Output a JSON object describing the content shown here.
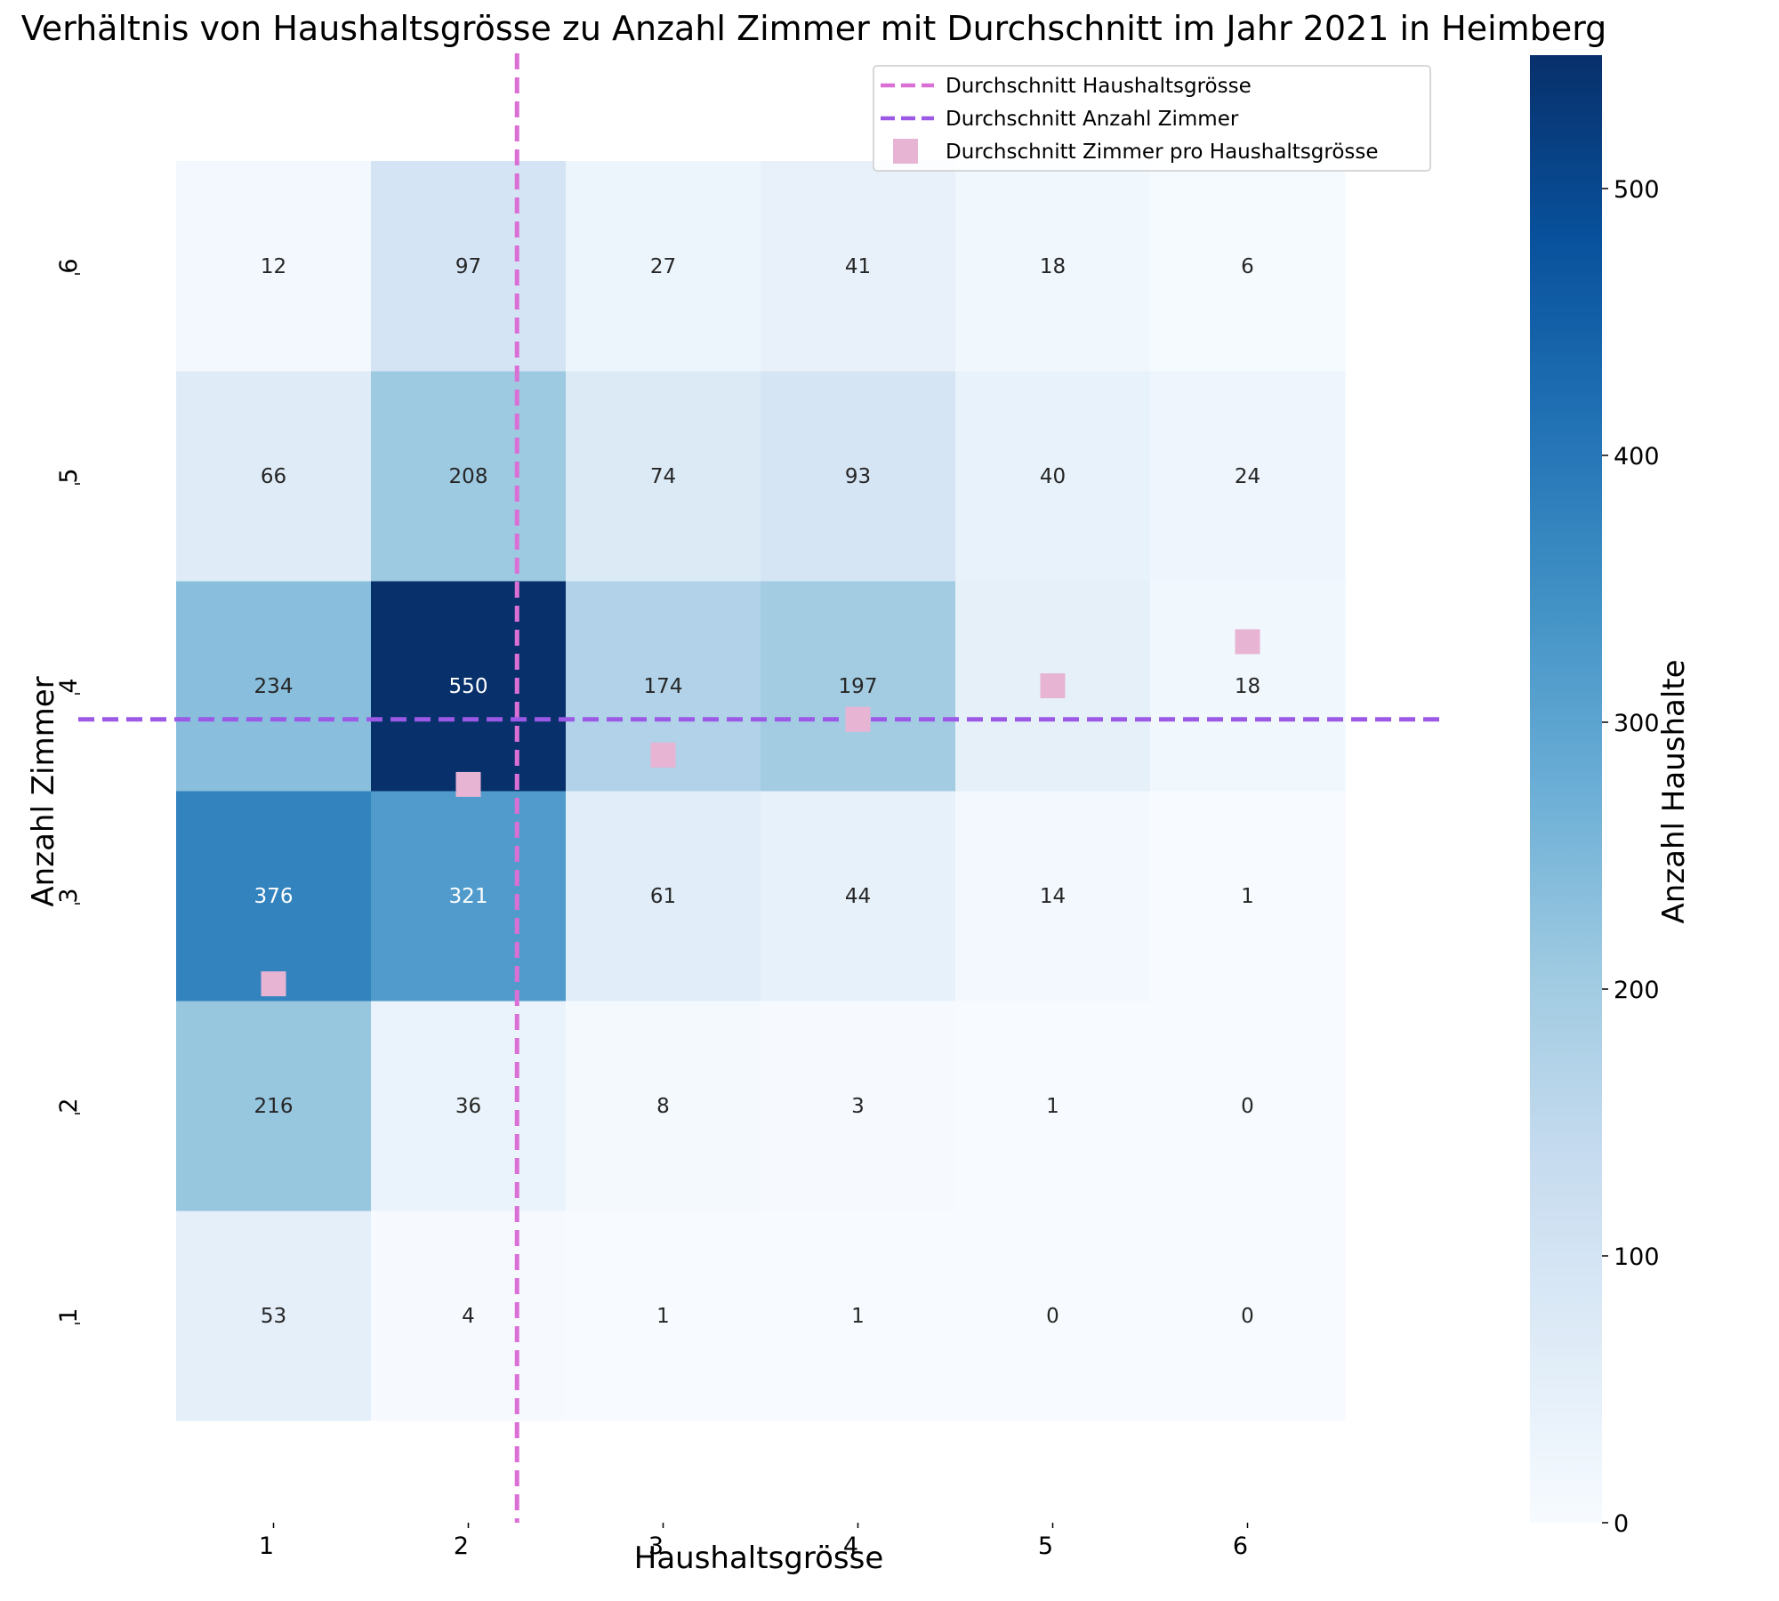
{
  "chart_data": {
    "type": "heatmap",
    "title": "Verhältnis von Haushaltsgrösse zu Anzahl Zimmer mit Durchschnitt im Jahr 2021 in Heimberg",
    "xlabel": "Haushaltsgrösse",
    "ylabel": "Anzahl Zimmer",
    "colorbar_label": "Anzahl Haushalte",
    "x_categories": [
      "1",
      "2",
      "3",
      "4",
      "5",
      "6"
    ],
    "y_categories": [
      "1",
      "2",
      "3",
      "4",
      "5",
      "6"
    ],
    "values_by_rooms": {
      "1": [
        53,
        4,
        1,
        1,
        0,
        0
      ],
      "2": [
        216,
        36,
        8,
        3,
        1,
        0
      ],
      "3": [
        376,
        321,
        61,
        44,
        14,
        1
      ],
      "4": [
        234,
        550,
        174,
        197,
        49,
        18
      ],
      "5": [
        66,
        208,
        74,
        93,
        40,
        24
      ],
      "6": [
        12,
        97,
        27,
        41,
        18,
        6
      ]
    },
    "colorscale": "Blues",
    "color_range": [
      0,
      550
    ],
    "colorbar_ticks": [
      0,
      100,
      200,
      300,
      400,
      500
    ],
    "average_household_size": 2.25,
    "average_rooms": 3.84,
    "avg_rooms_per_household_size": [
      {
        "x": 1,
        "y": 2.58
      },
      {
        "x": 2,
        "y": 3.53
      },
      {
        "x": 3,
        "y": 3.67
      },
      {
        "x": 4,
        "y": 3.84
      },
      {
        "x": 5,
        "y": 4.0
      },
      {
        "x": 6,
        "y": 4.21
      }
    ],
    "legend": {
      "position": "top-right",
      "entries": [
        {
          "label": "Durchschnitt Haushaltsgrösse",
          "style": "dashed-line",
          "color": "#DA70D6"
        },
        {
          "label": "Durchschnitt Anzahl Zimmer",
          "style": "dashed-line",
          "color": "#9B59E6"
        },
        {
          "label": "Durchschnitt Zimmer pro Haushaltsgrösse",
          "style": "square-marker",
          "color": "#E8B4D4"
        }
      ]
    },
    "grid": false
  }
}
